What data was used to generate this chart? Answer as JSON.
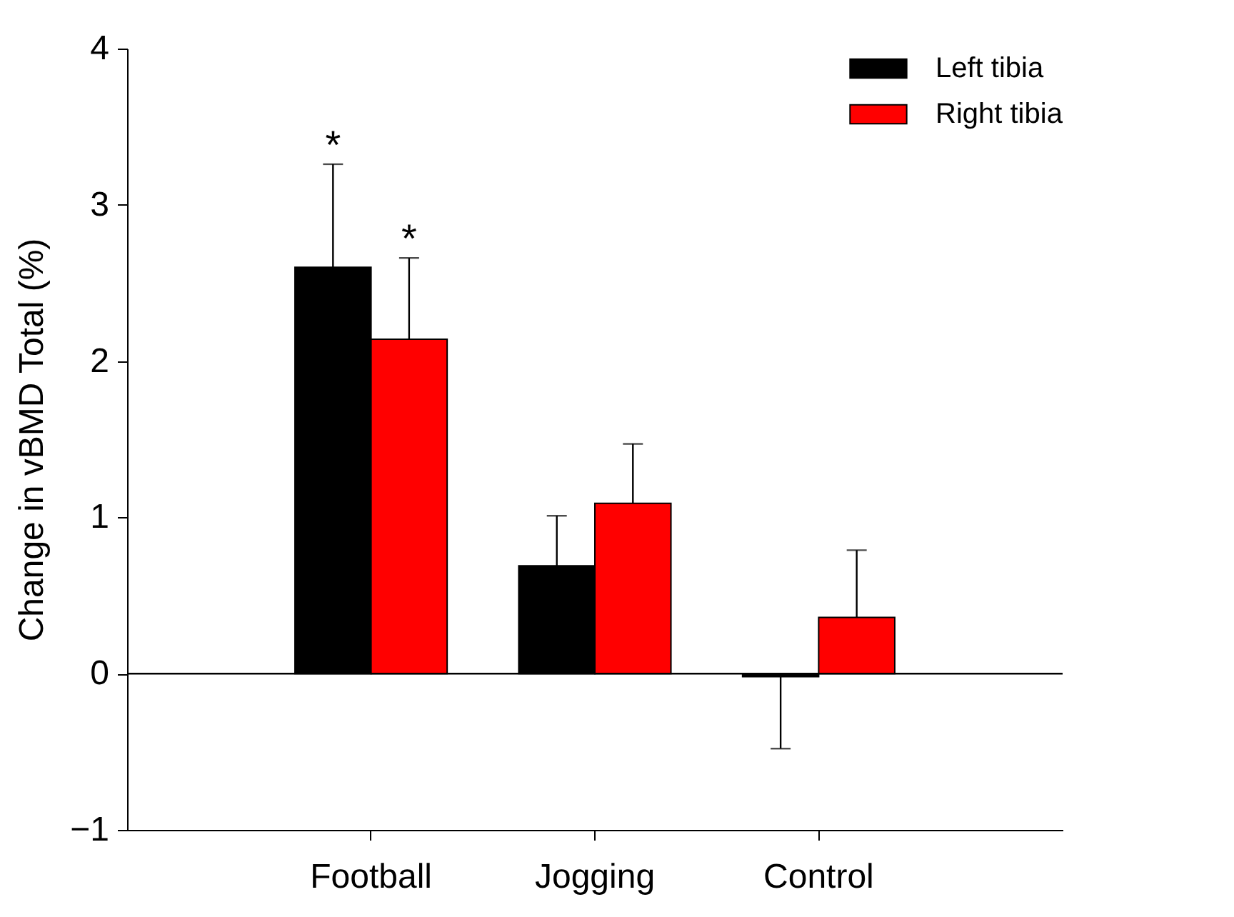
{
  "chart_data": {
    "type": "bar",
    "ylabel": "Change in vBMD Total (%)",
    "categories": [
      "Football",
      "Jogging",
      "Control"
    ],
    "series": [
      {
        "name": "Left tibia",
        "color": "#000000",
        "values": [
          2.6,
          0.69,
          -0.02
        ],
        "errors": [
          [
            2.6,
            3.26
          ],
          [
            0.69,
            1.01
          ],
          [
            -0.48,
            -0.02
          ]
        ]
      },
      {
        "name": "Right tibia",
        "color": "#ff0000",
        "values": [
          2.14,
          1.09,
          0.36
        ],
        "errors": [
          [
            2.14,
            2.66
          ],
          [
            1.09,
            1.47
          ],
          [
            0.36,
            0.79
          ]
        ]
      }
    ],
    "ylim": [
      -1,
      4
    ],
    "yticks": [
      -1,
      0,
      1,
      2,
      3,
      4
    ],
    "grid": false,
    "legend": "top right",
    "ref_lines": [
      {
        "axis": "y",
        "value": 0
      }
    ],
    "annotations": [
      "*",
      "*"
    ]
  }
}
